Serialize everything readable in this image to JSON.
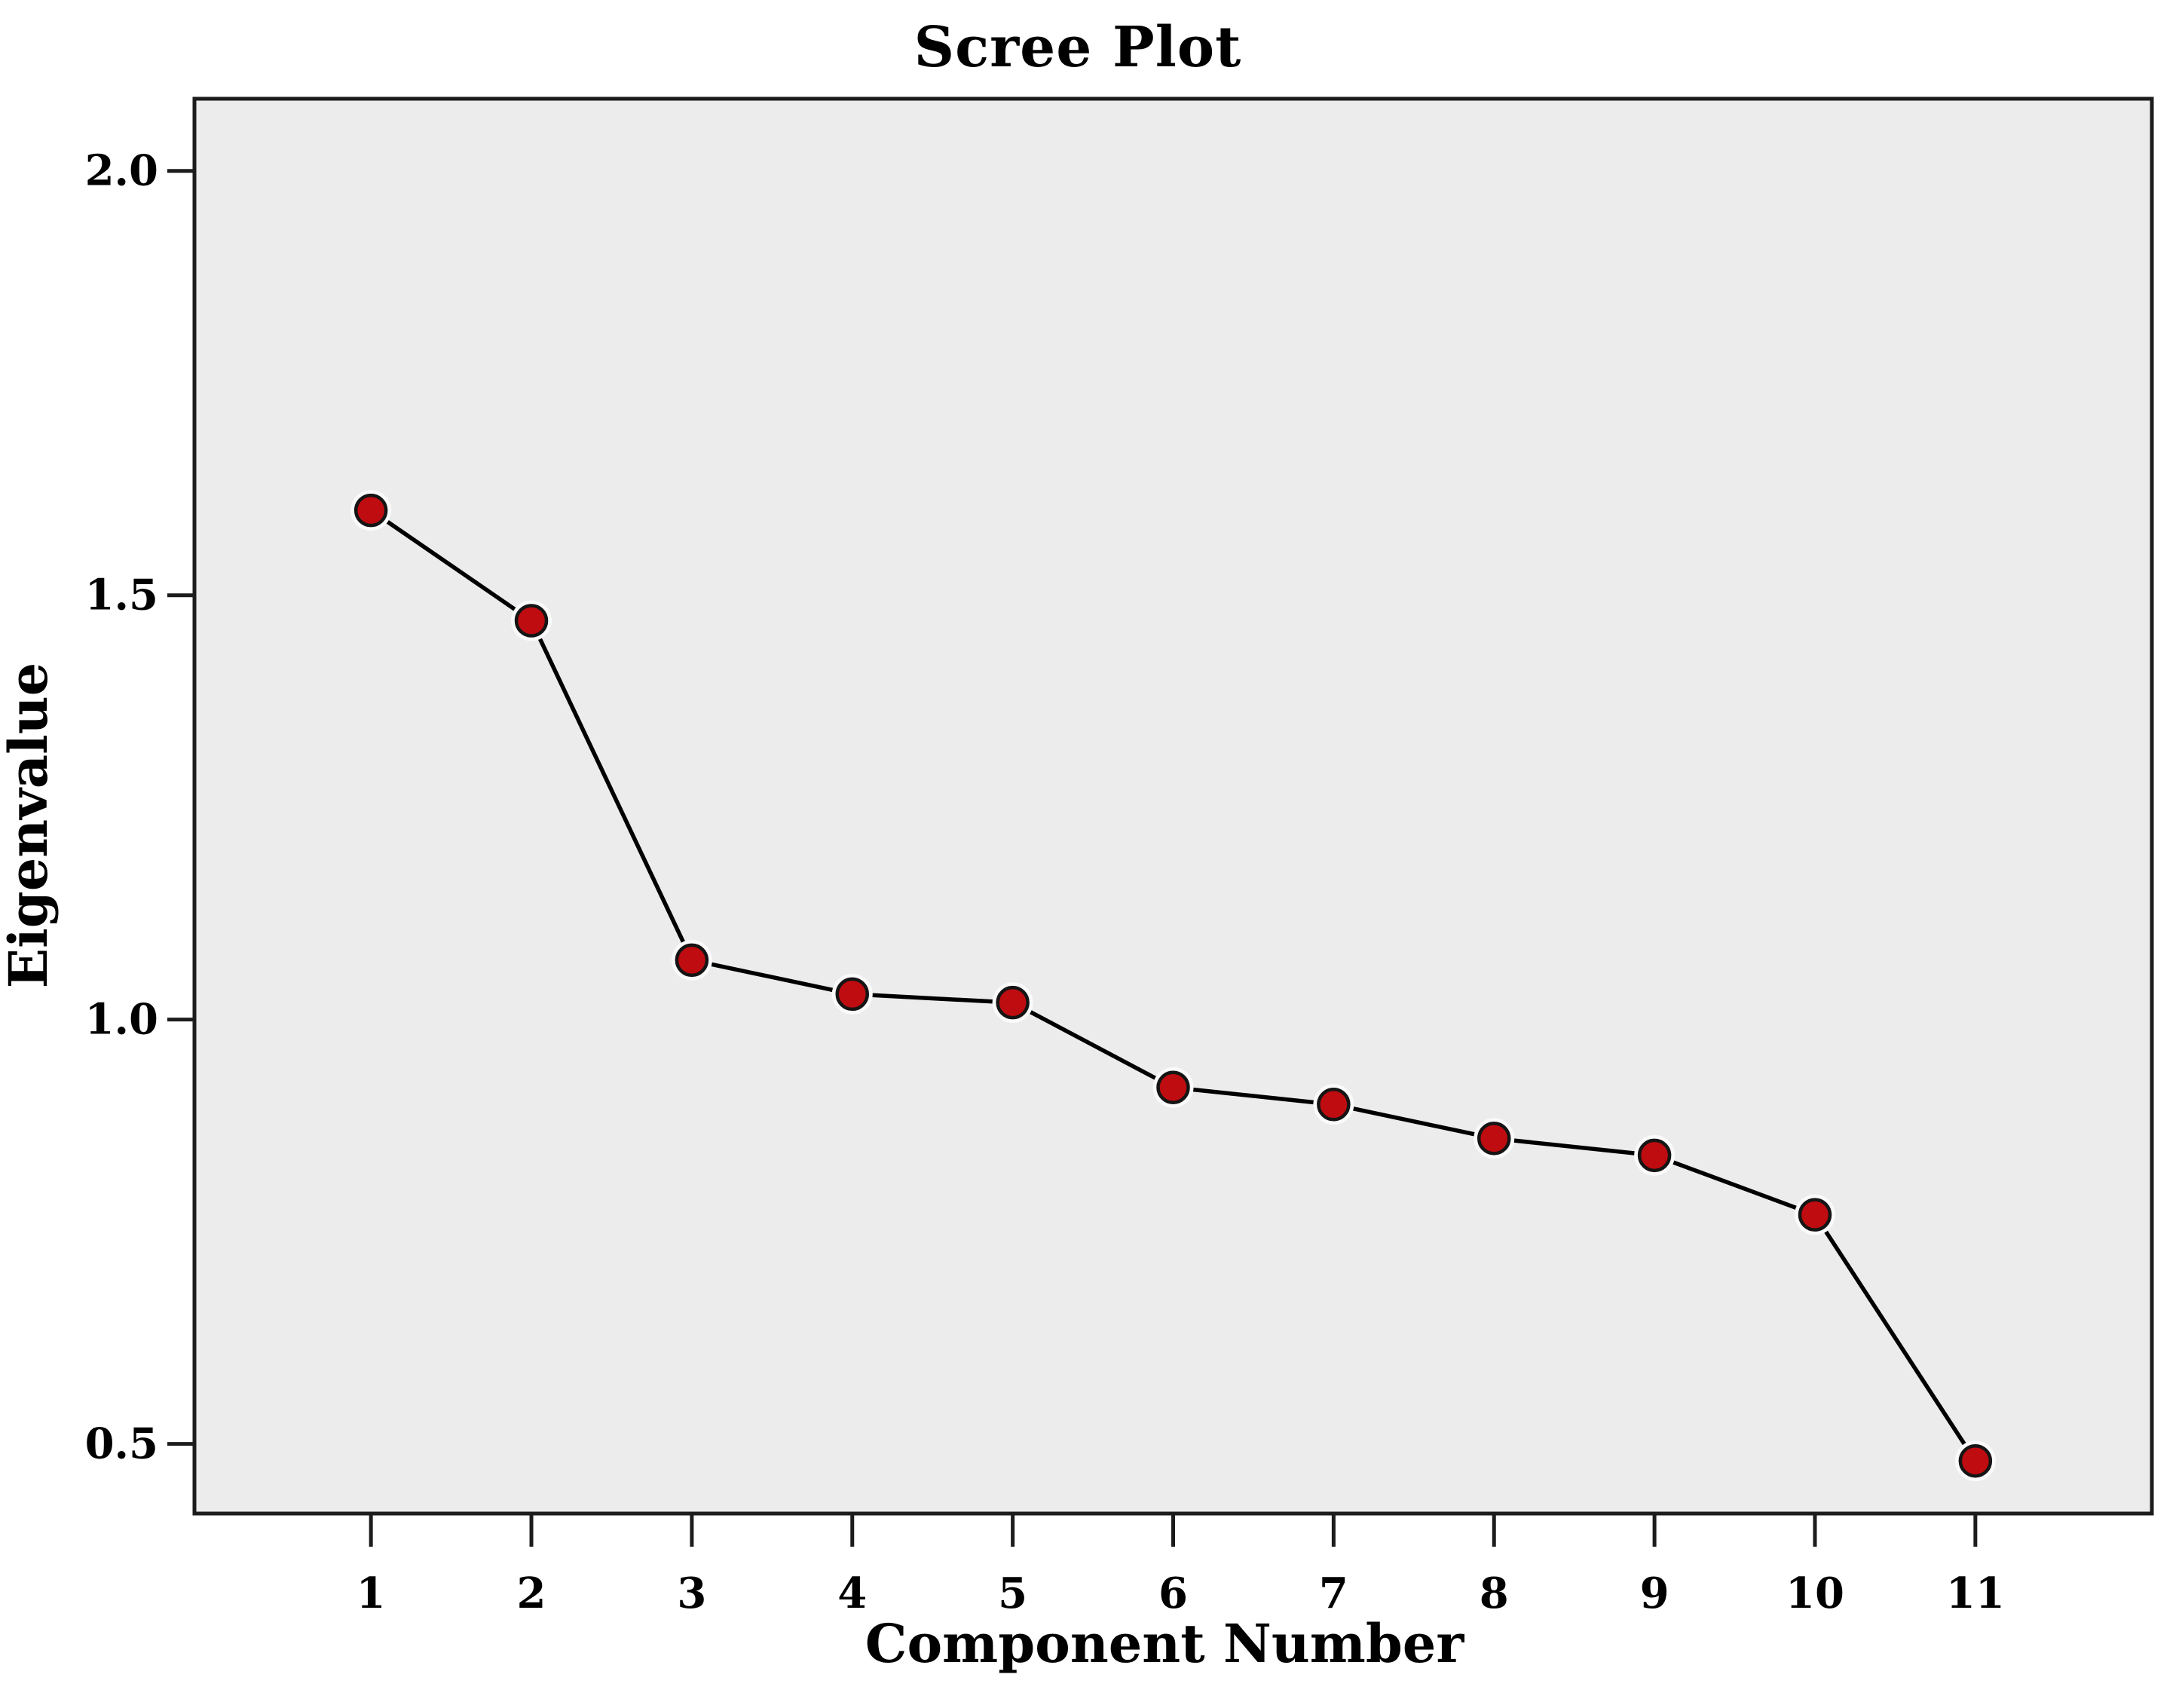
{
  "figure": {
    "title": "Scree Plot",
    "background_color": "#ffffff"
  },
  "chart_data": {
    "type": "line",
    "title": "Scree Plot",
    "xlabel": "Component Number",
    "ylabel": "Eigenvalue",
    "x": [
      1,
      2,
      3,
      4,
      5,
      6,
      7,
      8,
      9,
      10,
      11
    ],
    "x_tick_labels": [
      "1",
      "2",
      "3",
      "4",
      "5",
      "6",
      "7",
      "8",
      "9",
      "10",
      "11"
    ],
    "series": [
      {
        "name": "Eigenvalue",
        "values": [
          1.6,
          1.47,
          1.07,
          1.03,
          1.02,
          0.92,
          0.9,
          0.86,
          0.84,
          0.77,
          0.48
        ]
      }
    ],
    "y_ticks": [
      0.5,
      1.0,
      1.5,
      2.0
    ],
    "y_tick_labels": [
      "0.5",
      "1.0",
      "1.5",
      "2.0"
    ],
    "xlim": [
      -0.1,
      12.1
    ],
    "ylim": [
      0.418,
      2.085
    ],
    "grid": false,
    "legend_position": "none",
    "styles": {
      "plot_background": "#ececec",
      "frame_color": "#1c1c1c",
      "line_color": "#000000",
      "marker_fill": "#bf0c10",
      "marker_stroke": "#151515",
      "marker_halo": "#fafafa",
      "text_color": "#000000"
    }
  }
}
